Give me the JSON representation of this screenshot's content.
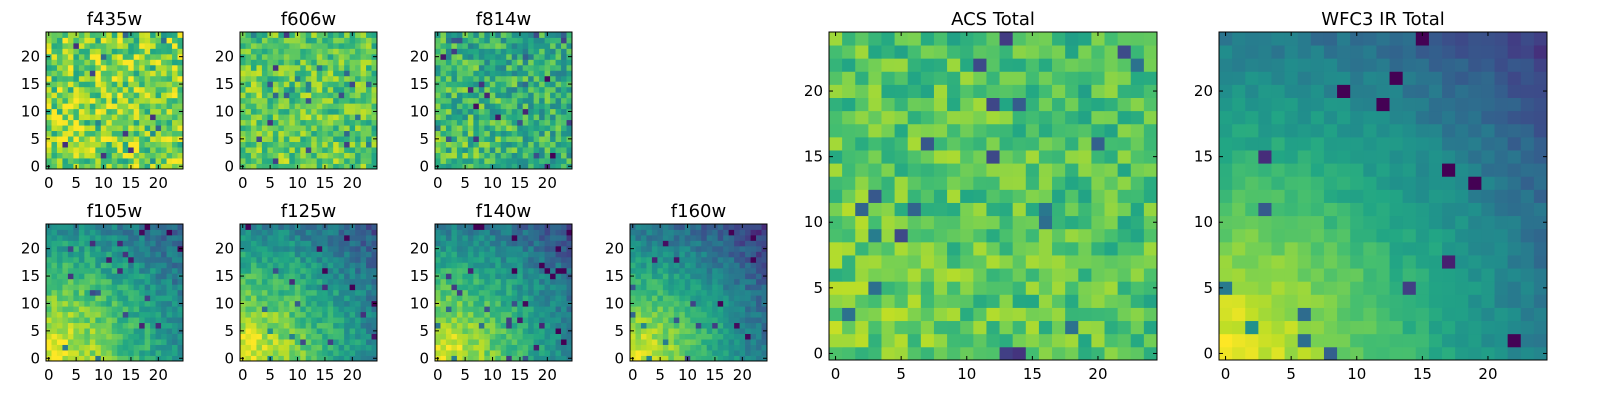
{
  "chart_data": [
    {
      "type": "heatmap",
      "title": "f435w",
      "colormap": "viridis",
      "grid": false,
      "nx": 25,
      "ny": 25,
      "x_ticks": [
        0,
        5,
        10,
        15,
        20
      ],
      "y_ticks": [
        0,
        5,
        10,
        15,
        20
      ],
      "xlim": [
        -0.5,
        24.5
      ],
      "ylim": [
        -0.5,
        24.5
      ],
      "pattern": {
        "base": 0.8,
        "falloff": 0.0,
        "noise": 0.45,
        "seed": 11
      }
    },
    {
      "type": "heatmap",
      "title": "f606w",
      "colormap": "viridis",
      "grid": false,
      "nx": 25,
      "ny": 25,
      "x_ticks": [
        0,
        5,
        10,
        15,
        20
      ],
      "y_ticks": [
        0,
        5,
        10,
        15,
        20
      ],
      "xlim": [
        -0.5,
        24.5
      ],
      "ylim": [
        -0.5,
        24.5
      ],
      "pattern": {
        "base": 0.78,
        "falloff": 0.05,
        "noise": 0.35,
        "seed": 23
      }
    },
    {
      "type": "heatmap",
      "title": "f814w",
      "colormap": "viridis",
      "grid": false,
      "nx": 25,
      "ny": 25,
      "x_ticks": [
        0,
        5,
        10,
        15,
        20
      ],
      "y_ticks": [
        0,
        5,
        10,
        15,
        20
      ],
      "xlim": [
        -0.5,
        24.5
      ],
      "ylim": [
        -0.5,
        24.5
      ],
      "pattern": {
        "base": 0.72,
        "falloff": 0.12,
        "noise": 0.4,
        "seed": 37
      }
    },
    {
      "type": "heatmap",
      "title": "f105w",
      "colormap": "viridis",
      "grid": false,
      "nx": 25,
      "ny": 25,
      "x_ticks": [
        0,
        5,
        10,
        15,
        20
      ],
      "y_ticks": [
        0,
        5,
        10,
        15,
        20
      ],
      "xlim": [
        -0.5,
        24.5
      ],
      "ylim": [
        -0.5,
        24.5
      ],
      "pattern": {
        "base": 1.0,
        "falloff": 0.62,
        "noise": 0.22,
        "seed": 41
      }
    },
    {
      "type": "heatmap",
      "title": "f125w",
      "colormap": "viridis",
      "grid": false,
      "nx": 25,
      "ny": 25,
      "x_ticks": [
        0,
        5,
        10,
        15,
        20
      ],
      "y_ticks": [
        0,
        5,
        10,
        15,
        20
      ],
      "xlim": [
        -0.5,
        24.5
      ],
      "ylim": [
        -0.5,
        24.5
      ],
      "pattern": {
        "base": 1.0,
        "falloff": 0.65,
        "noise": 0.22,
        "seed": 53
      }
    },
    {
      "type": "heatmap",
      "title": "f140w",
      "colormap": "viridis",
      "grid": false,
      "nx": 25,
      "ny": 25,
      "x_ticks": [
        0,
        5,
        10,
        15,
        20
      ],
      "y_ticks": [
        0,
        5,
        10,
        15,
        20
      ],
      "xlim": [
        -0.5,
        24.5
      ],
      "ylim": [
        -0.5,
        24.5
      ],
      "pattern": {
        "base": 1.0,
        "falloff": 0.68,
        "noise": 0.2,
        "seed": 67
      }
    },
    {
      "type": "heatmap",
      "title": "f160w",
      "colormap": "viridis",
      "grid": false,
      "nx": 25,
      "ny": 25,
      "x_ticks": [
        0,
        5,
        10,
        15,
        20
      ],
      "y_ticks": [
        0,
        5,
        10,
        15,
        20
      ],
      "xlim": [
        -0.5,
        24.5
      ],
      "ylim": [
        -0.5,
        24.5
      ],
      "pattern": {
        "base": 1.0,
        "falloff": 0.75,
        "noise": 0.18,
        "seed": 79
      }
    },
    {
      "type": "heatmap",
      "title": "ACS Total",
      "colormap": "viridis",
      "grid": false,
      "nx": 25,
      "ny": 25,
      "x_ticks": [
        0,
        5,
        10,
        15,
        20
      ],
      "y_ticks": [
        0,
        5,
        10,
        15,
        20
      ],
      "xlim": [
        -0.5,
        24.5
      ],
      "ylim": [
        -0.5,
        24.5
      ],
      "pattern": {
        "base": 0.78,
        "falloff": 0.08,
        "noise": 0.28,
        "seed": 97
      }
    },
    {
      "type": "heatmap",
      "title": "WFC3 IR Total",
      "colormap": "viridis",
      "grid": false,
      "nx": 25,
      "ny": 25,
      "x_ticks": [
        0,
        5,
        10,
        15,
        20
      ],
      "y_ticks": [
        0,
        5,
        10,
        15,
        20
      ],
      "xlim": [
        -0.5,
        24.5
      ],
      "ylim": [
        -0.5,
        24.5
      ],
      "pattern": {
        "base": 1.0,
        "falloff": 0.72,
        "noise": 0.1,
        "seed": 113
      }
    }
  ]
}
